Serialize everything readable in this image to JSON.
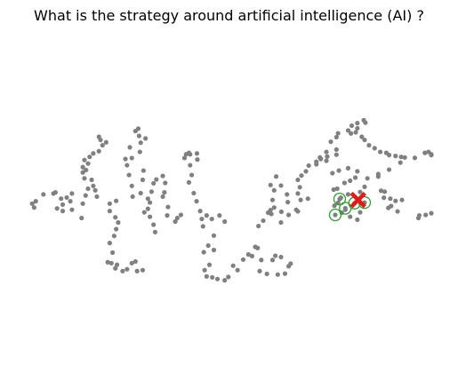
{
  "chart_data": {
    "type": "scatter",
    "title": "What is the strategy around artificial intelligence (AI) ?",
    "xlabel": "",
    "ylabel": "",
    "axes": "off",
    "grid": false,
    "legend": "none",
    "xlim": [
      0,
      100
    ],
    "ylim": [
      0,
      100
    ],
    "colors": {
      "points": "#808080",
      "highlight": "#2ca02c",
      "query": "#e31a1c"
    },
    "series": [
      {
        "role": "points",
        "points": [
          [
            0.7,
            43.6
          ],
          [
            1.6,
            44.9
          ],
          [
            1.2,
            41.5
          ],
          [
            3.5,
            48.6
          ],
          [
            6.0,
            49.1
          ],
          [
            6.5,
            49.7
          ],
          [
            7.9,
            46.3
          ],
          [
            9.3,
            46.9
          ],
          [
            10.6,
            49.1
          ],
          [
            10.2,
            44.9
          ],
          [
            8.3,
            43.1
          ],
          [
            6.9,
            41.0
          ],
          [
            8.3,
            39.6
          ],
          [
            10.6,
            40.3
          ],
          [
            13.3,
            43.6
          ],
          [
            13.0,
            35.8
          ],
          [
            14.0,
            48.0
          ],
          [
            13.7,
            57.3
          ],
          [
            14.1,
            61.8
          ],
          [
            14.6,
            65.3
          ],
          [
            13.7,
            67.2
          ],
          [
            15.0,
            68.9
          ],
          [
            15.9,
            70.8
          ],
          [
            17.3,
            72.0
          ],
          [
            18.2,
            75.2
          ],
          [
            19.1,
            76.8
          ],
          [
            17.7,
            78.1
          ],
          [
            17.3,
            79.8
          ],
          [
            13.3,
            63.4
          ],
          [
            13.3,
            60.5
          ],
          [
            15.5,
            56.5
          ],
          [
            15.9,
            53.2
          ],
          [
            16.4,
            50.8
          ],
          [
            14.6,
            51.7
          ],
          [
            16.8,
            47.4
          ],
          [
            20.0,
            43.6
          ],
          [
            21.6,
            45.1
          ],
          [
            20.0,
            39.6
          ],
          [
            21.4,
            36.2
          ],
          [
            22.1,
            33.4
          ],
          [
            21.6,
            29.8
          ],
          [
            21.1,
            26.1
          ],
          [
            20.0,
            22.3
          ],
          [
            20.7,
            17.1
          ],
          [
            19.5,
            11.9
          ],
          [
            20.4,
            11.4
          ],
          [
            21.8,
            10.5
          ],
          [
            21.4,
            8.6
          ],
          [
            23.2,
            7.1
          ],
          [
            24.3,
            8.1
          ],
          [
            26.8,
            7.1
          ],
          [
            28.2,
            7.6
          ],
          [
            26.4,
            12.3
          ],
          [
            25.5,
            11.4
          ],
          [
            25.7,
            47.4
          ],
          [
            25.5,
            53.2
          ],
          [
            24.8,
            59.1
          ],
          [
            24.3,
            64.4
          ],
          [
            23.9,
            67.8
          ],
          [
            25.5,
            68.3
          ],
          [
            25.0,
            74.1
          ],
          [
            27.5,
            71.6
          ],
          [
            27.7,
            76.6
          ],
          [
            28.9,
            78.9
          ],
          [
            27.3,
            80.3
          ],
          [
            26.4,
            82.9
          ],
          [
            27.1,
            84.2
          ],
          [
            28.4,
            61.5
          ],
          [
            28.2,
            56.5
          ],
          [
            27.7,
            49.3
          ],
          [
            30.4,
            50.1
          ],
          [
            30.9,
            54.6
          ],
          [
            31.6,
            56.7
          ],
          [
            29.5,
            46.3
          ],
          [
            30.0,
            44.2
          ],
          [
            29.5,
            40.8
          ],
          [
            28.6,
            38.9
          ],
          [
            30.0,
            36.5
          ],
          [
            30.9,
            32.2
          ],
          [
            31.3,
            28.2
          ],
          [
            33.2,
            58.6
          ],
          [
            33.8,
            54.8
          ],
          [
            33.6,
            49.7
          ],
          [
            33.2,
            47.4
          ],
          [
            34.5,
            41.8
          ],
          [
            34.3,
            37.2
          ],
          [
            36.3,
            33.9
          ],
          [
            36.8,
            35.8
          ],
          [
            37.7,
            37.5
          ],
          [
            38.6,
            68.3
          ],
          [
            39.0,
            70.3
          ],
          [
            39.7,
            71.1
          ],
          [
            40.0,
            70.3
          ],
          [
            41.7,
            70.8
          ],
          [
            41.8,
            67.5
          ],
          [
            40.0,
            64.4
          ],
          [
            40.4,
            59.1
          ],
          [
            39.7,
            55.1
          ],
          [
            40.9,
            49.3
          ],
          [
            41.6,
            44.9
          ],
          [
            42.5,
            39.6
          ],
          [
            42.9,
            35.3
          ],
          [
            43.2,
            31.3
          ],
          [
            44.1,
            37.2
          ],
          [
            45.4,
            35.3
          ],
          [
            47.3,
            37.2
          ],
          [
            48.6,
            33.9
          ],
          [
            45.9,
            26.3
          ],
          [
            44.5,
            20.9
          ],
          [
            45.9,
            18.5
          ],
          [
            43.4,
            17.3
          ],
          [
            44.8,
            10.5
          ],
          [
            43.6,
            7.6
          ],
          [
            44.1,
            4.2
          ],
          [
            45.5,
            3.7
          ],
          [
            46.8,
            2.8
          ],
          [
            48.6,
            2.1
          ],
          [
            49.5,
            3.9
          ],
          [
            50.7,
            10.0
          ],
          [
            51.8,
            7.6
          ],
          [
            53.2,
            13.3
          ],
          [
            54.5,
            16.1
          ],
          [
            55.4,
            15.2
          ],
          [
            56.2,
            20.2
          ],
          [
            56.8,
            19.6
          ],
          [
            57.7,
            13.1
          ],
          [
            57.3,
            7.1
          ],
          [
            59.1,
            5.6
          ],
          [
            61.8,
            5.2
          ],
          [
            63.6,
            5.7
          ],
          [
            64.5,
            9.7
          ],
          [
            65.0,
            11.1
          ],
          [
            62.6,
            14.7
          ],
          [
            61.2,
            15.4
          ],
          [
            60.5,
            13.1
          ],
          [
            57.0,
            31.5
          ],
          [
            58.2,
            34.4
          ],
          [
            59.4,
            38.7
          ],
          [
            60.0,
            40.1
          ],
          [
            60.9,
            41.5
          ],
          [
            60.5,
            45.6
          ],
          [
            60.9,
            50.8
          ],
          [
            60.0,
            53.7
          ],
          [
            61.4,
            58.3
          ],
          [
            62.6,
            53.4
          ],
          [
            64.1,
            48.6
          ],
          [
            64.3,
            44.4
          ],
          [
            62.7,
            39.2
          ],
          [
            62.6,
            33.4
          ],
          [
            64.5,
            37.5
          ],
          [
            66.4,
            40.3
          ],
          [
            67.5,
            45.6
          ],
          [
            69.3,
            46.3
          ],
          [
            66.8,
            49.1
          ],
          [
            67.3,
            52.5
          ],
          [
            66.8,
            56.5
          ],
          [
            67.7,
            58.8
          ],
          [
            68.8,
            61.1
          ],
          [
            69.5,
            64.2
          ],
          [
            71.4,
            66.3
          ],
          [
            72.5,
            67.8
          ],
          [
            72.3,
            68.6
          ],
          [
            74.1,
            69.1
          ],
          [
            73.9,
            71.6
          ],
          [
            76.4,
            70.1
          ],
          [
            76.4,
            72.9
          ],
          [
            75.0,
            77.1
          ],
          [
            76.4,
            79.6
          ],
          [
            76.8,
            81.7
          ],
          [
            79.3,
            83.2
          ],
          [
            80.2,
            85.8
          ],
          [
            81.6,
            87.2
          ],
          [
            83.2,
            88.8
          ],
          [
            83.6,
            87.4
          ],
          [
            81.6,
            84.4
          ],
          [
            81.2,
            82.2
          ],
          [
            82.7,
            79.8
          ],
          [
            83.4,
            78.1
          ],
          [
            84.5,
            75.2
          ],
          [
            85.9,
            73.6
          ],
          [
            87.3,
            71.6
          ],
          [
            88.8,
            71.1
          ],
          [
            89.5,
            69.9
          ],
          [
            91.1,
            69.4
          ],
          [
            92.5,
            68.9
          ],
          [
            93.4,
            68.6
          ],
          [
            95.9,
            68.4
          ],
          [
            98.4,
            71.1
          ],
          [
            99.3,
            71.6
          ],
          [
            100.0,
            70.3
          ],
          [
            100.0,
            69.9
          ],
          [
            92.3,
            65.8
          ],
          [
            89.5,
            62.0
          ],
          [
            86.8,
            59.6
          ],
          [
            84.1,
            57.3
          ],
          [
            83.4,
            52.7
          ],
          [
            82.3,
            49.9
          ],
          [
            79.3,
            48.6
          ],
          [
            77.5,
            46.8
          ],
          [
            76.8,
            44.0
          ],
          [
            75.9,
            42.5
          ],
          [
            77.7,
            38.7
          ],
          [
            79.8,
            36.5
          ],
          [
            81.6,
            34.9
          ],
          [
            82.3,
            38.9
          ],
          [
            78.6,
            40.3
          ],
          [
            75.7,
            51.2
          ],
          [
            76.6,
            51.7
          ],
          [
            78.4,
            54.8
          ],
          [
            79.8,
            56.0
          ],
          [
            81.1,
            57.7
          ],
          [
            81.6,
            61.1
          ],
          [
            79.3,
            62.8
          ],
          [
            77.0,
            61.5
          ],
          [
            75.4,
            60.1
          ],
          [
            86.8,
            58.3
          ],
          [
            87.5,
            50.6
          ],
          [
            88.4,
            50.1
          ],
          [
            88.2,
            46.8
          ],
          [
            89.8,
            46.3
          ],
          [
            91.1,
            45.1
          ],
          [
            92.7,
            45.6
          ],
          [
            90.0,
            42.3
          ],
          [
            89.3,
            41.3
          ],
          [
            91.6,
            39.4
          ],
          [
            96.8,
            35.8
          ],
          [
            97.0,
            37.2
          ],
          [
            98.6,
            37.5
          ],
          [
            100.0,
            38.4
          ],
          [
            71.4,
            64.9
          ],
          [
            66.8,
            39.4
          ],
          [
            60.2,
            38.0
          ],
          [
            73.9,
            66.8
          ],
          [
            80.0,
            81.6
          ]
        ]
      },
      {
        "role": "highlight",
        "points": [
          [
            77.2,
            46.1
          ],
          [
            78.6,
            41.1
          ],
          [
            80.9,
            43.9
          ],
          [
            83.4,
            44.2
          ],
          [
            76.1,
            37.5
          ]
        ]
      },
      {
        "role": "query",
        "points": [
          [
            81.8,
            45.6
          ]
        ]
      }
    ]
  }
}
